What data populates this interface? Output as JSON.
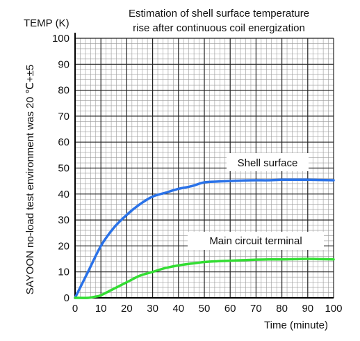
{
  "chart_data": {
    "type": "line",
    "title_lines": [
      "Estimation of shell surface temperature",
      "rise after continuous coil energization"
    ],
    "ylabel_top": "TEMP (K)",
    "ylabel_side": "SAYOON no-load test environment was 20 ℃+±5",
    "xlabel": "Time (minute)",
    "xlim": [
      0,
      100
    ],
    "ylim": [
      0,
      100
    ],
    "x_ticks": [
      0,
      10,
      20,
      30,
      40,
      50,
      60,
      70,
      80,
      90,
      100
    ],
    "y_ticks": [
      0,
      10,
      20,
      30,
      40,
      50,
      60,
      70,
      80,
      90,
      100
    ],
    "x_tick_labels": [
      "0",
      "10",
      "20",
      "30",
      "40",
      "50",
      "60",
      "70",
      "80",
      "90",
      "100"
    ],
    "y_tick_labels": [
      "0",
      "10",
      "20",
      "30",
      "40",
      "50",
      "60",
      "70",
      "80",
      "90",
      "100"
    ],
    "grid": true,
    "series": [
      {
        "name": "Shell surface",
        "color": "#2a72e8",
        "x": [
          0,
          5,
          10,
          15,
          20,
          25,
          30,
          35,
          40,
          45,
          50,
          55,
          60,
          65,
          70,
          75,
          80,
          85,
          90,
          95,
          100
        ],
        "y": [
          0,
          10,
          20,
          27,
          32,
          36,
          39,
          40.5,
          42,
          43,
          44.5,
          44.8,
          45,
          45.2,
          45.3,
          45.3,
          45.5,
          45.5,
          45.5,
          45.4,
          45.3
        ]
      },
      {
        "name": "Main circuit terminal",
        "color": "#33dd33",
        "x": [
          0,
          5,
          8,
          10,
          15,
          20,
          25,
          30,
          35,
          40,
          45,
          50,
          55,
          60,
          65,
          70,
          75,
          80,
          85,
          90,
          95,
          100
        ],
        "y": [
          0,
          0,
          0.5,
          1,
          3.5,
          6,
          8.5,
          10,
          11.5,
          12.5,
          13.2,
          13.8,
          14.1,
          14.3,
          14.5,
          14.7,
          14.8,
          14.8,
          14.9,
          15,
          14.9,
          14.8
        ]
      }
    ]
  }
}
